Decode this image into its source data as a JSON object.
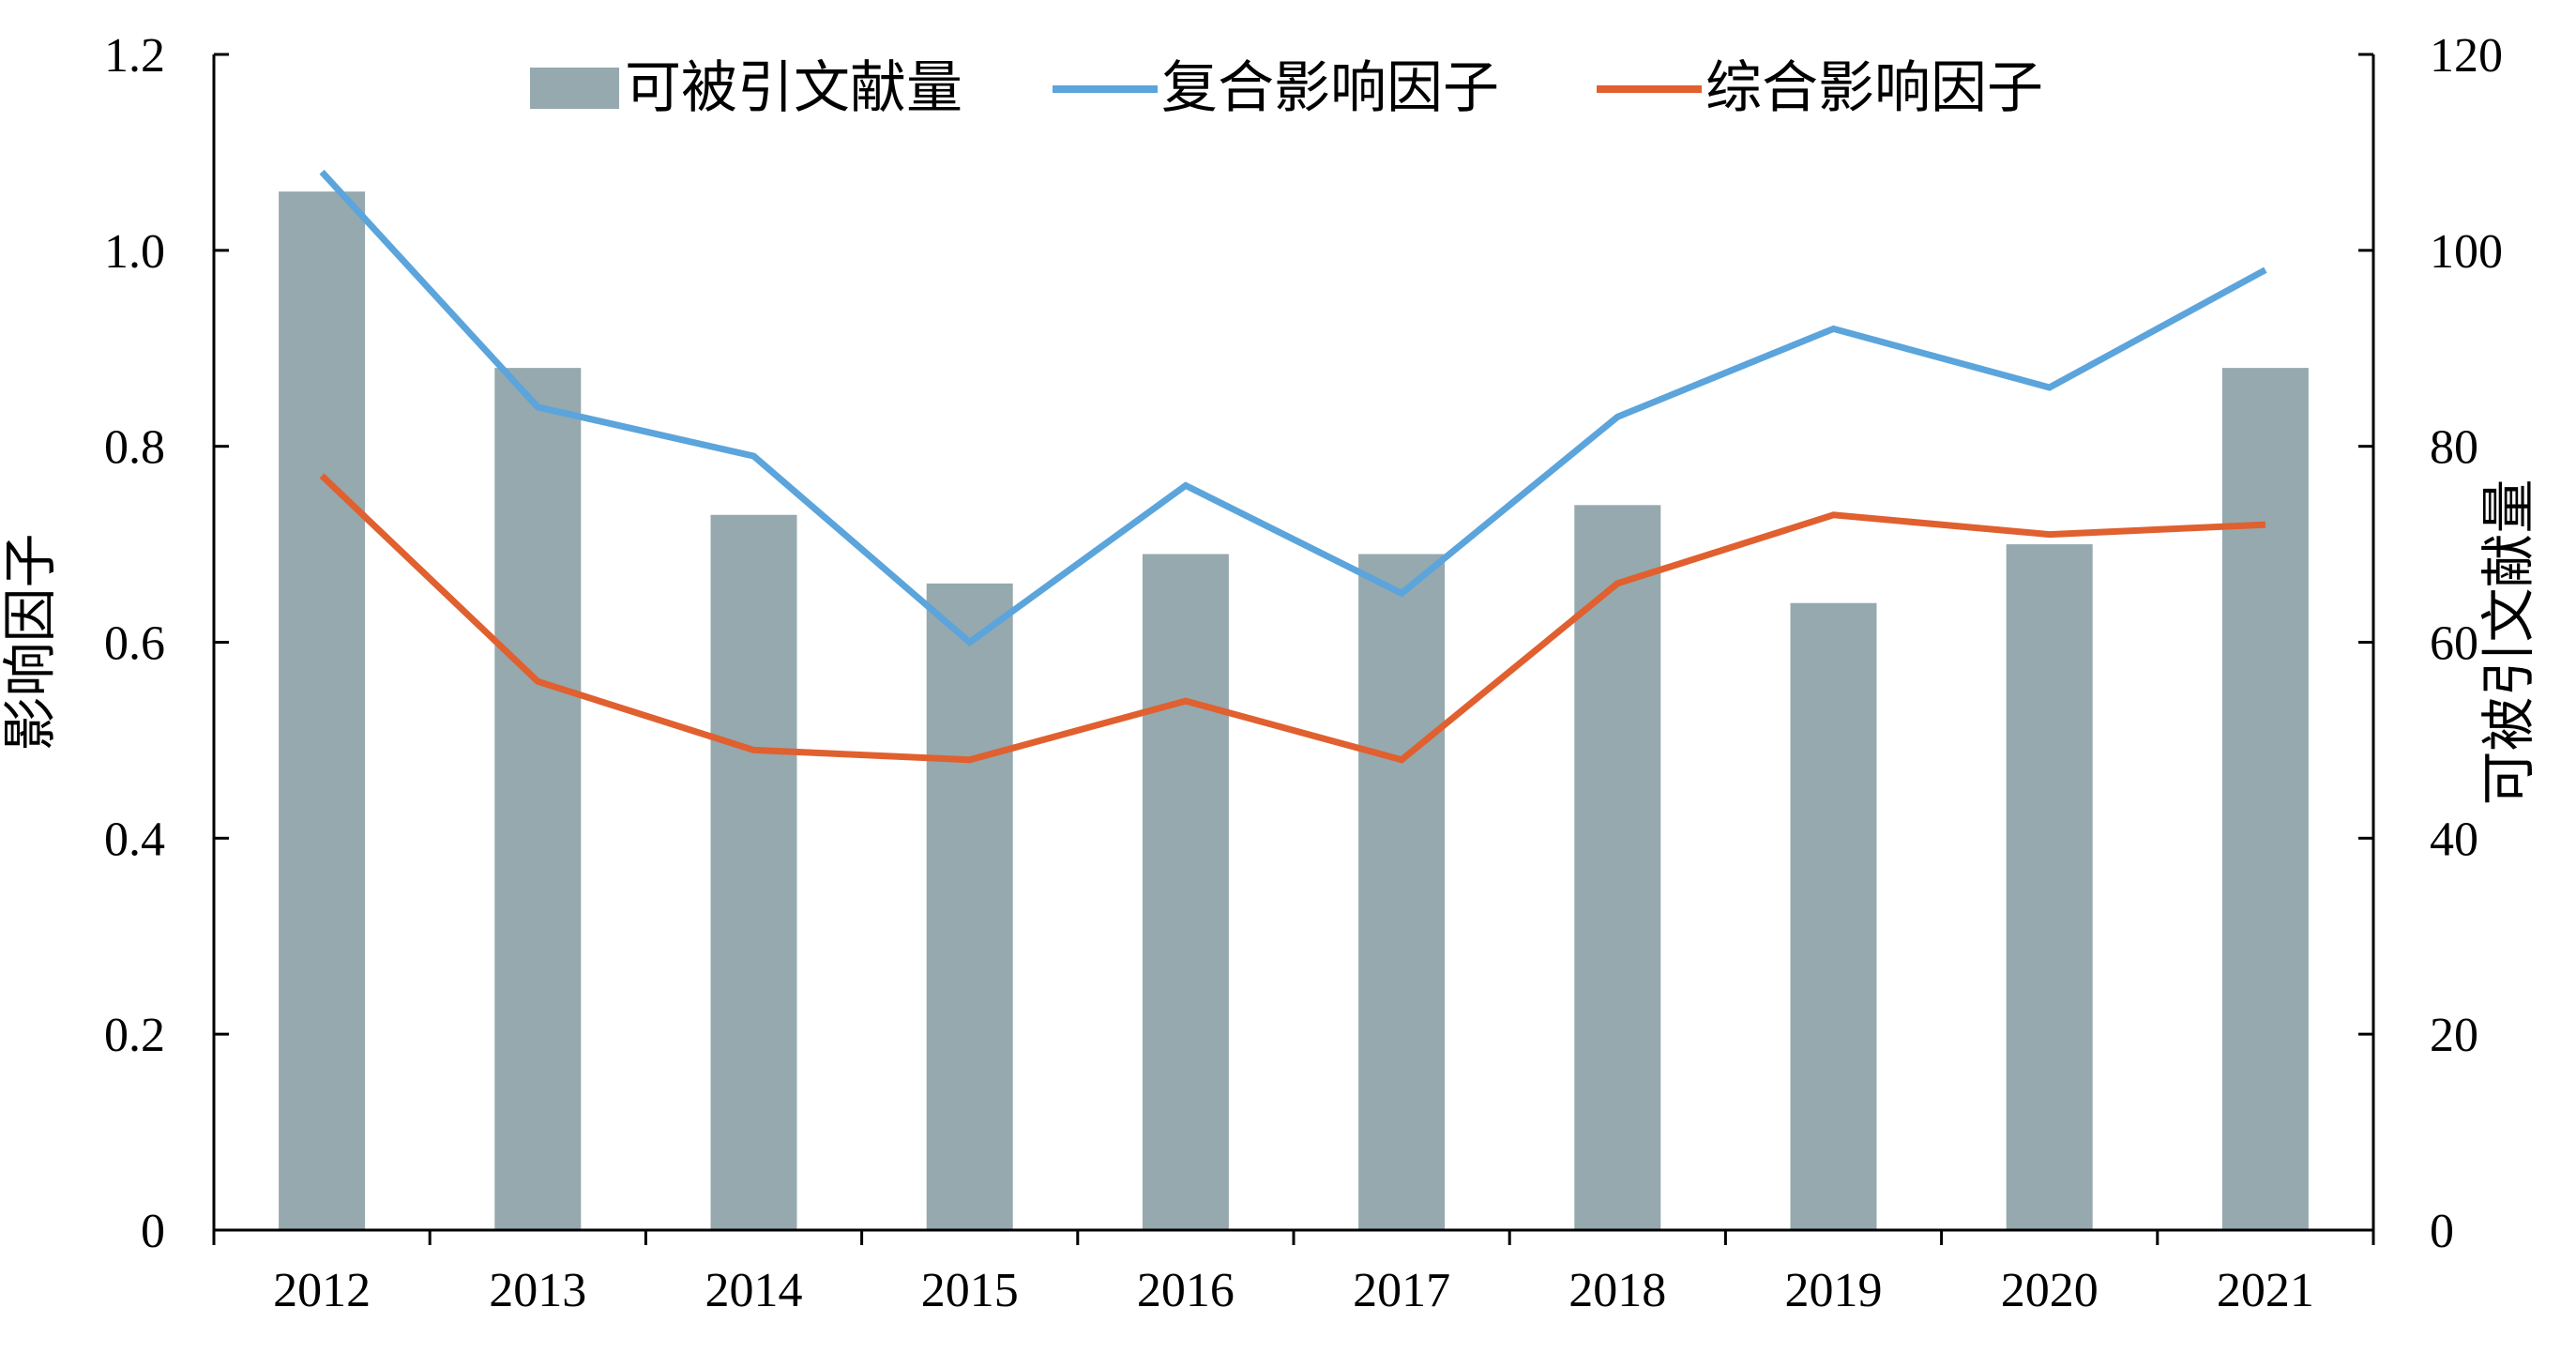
{
  "chart_data": {
    "type": "bar+line",
    "categories": [
      "2012",
      "2013",
      "2014",
      "2015",
      "2016",
      "2017",
      "2018",
      "2019",
      "2020",
      "2021"
    ],
    "series": [
      {
        "name": "可被引文献量",
        "type": "bar",
        "axis": "right",
        "color": "#95a9ae",
        "values": [
          106,
          88,
          73,
          66,
          69,
          69,
          74,
          64,
          70,
          88
        ]
      },
      {
        "name": "复合影响因子",
        "type": "line",
        "axis": "left",
        "color": "#5ba4dc",
        "values": [
          1.08,
          0.84,
          0.79,
          0.6,
          0.76,
          0.65,
          0.83,
          0.92,
          0.86,
          0.98
        ]
      },
      {
        "name": "综合影响因子",
        "type": "line",
        "axis": "left",
        "color": "#e0602f",
        "values": [
          0.77,
          0.56,
          0.49,
          0.48,
          0.54,
          0.48,
          0.66,
          0.73,
          0.71,
          0.72
        ]
      }
    ],
    "y_left": {
      "label": "影响因子",
      "range": [
        0,
        1.2
      ],
      "ticks": [
        "0",
        "0.2",
        "0.4",
        "0.6",
        "0.8",
        "1.0",
        "1.2"
      ]
    },
    "y_right": {
      "label": "可被引文献量",
      "range": [
        0,
        120
      ],
      "ticks": [
        "0",
        "20",
        "40",
        "60",
        "80",
        "100",
        "120"
      ]
    },
    "legend_position": "top-center",
    "grid": false
  }
}
